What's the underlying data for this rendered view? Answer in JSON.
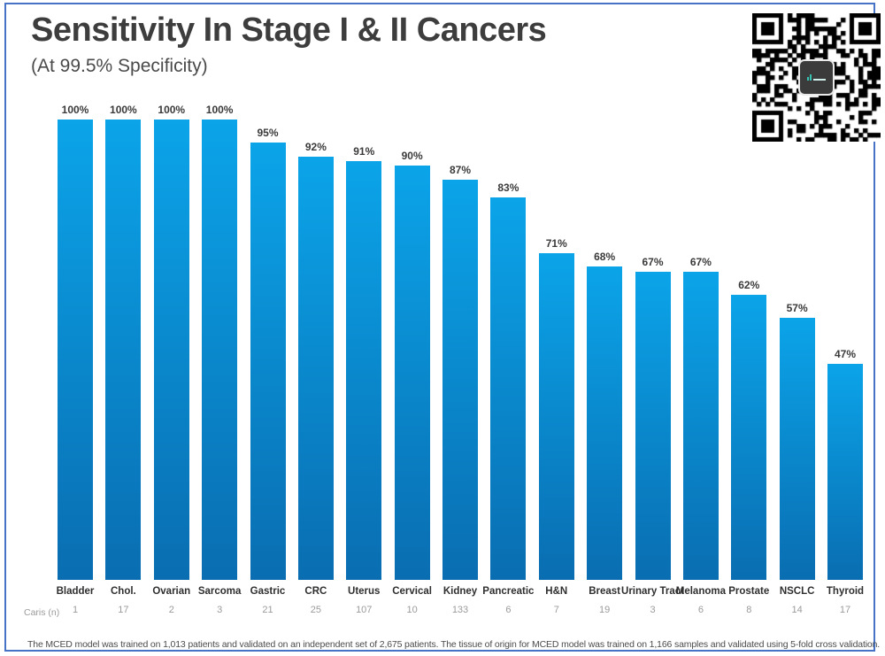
{
  "page": {
    "title": "Sensitivity In Stage I & II Cancers",
    "subtitle": "(At 99.5% Specificity)",
    "n_row_label": "Caris (n)",
    "footer": "The MCED model was trained on 1,013 patients and validated on an independent set of 2,675 patients. The tissue of origin for MCED model was trained on 1,166 samples and validated using 5-fold cross validation."
  },
  "chart_data": {
    "type": "bar",
    "title": "Sensitivity In Stage I & II Cancers",
    "subtitle": "(At 99.5% Specificity)",
    "categories": [
      "Bladder",
      "Chol.",
      "Ovarian",
      "Sarcoma",
      "Gastric",
      "CRC",
      "Uterus",
      "Cervical",
      "Kidney",
      "Pancreatic",
      "H&N",
      "Breast",
      "Urinary Tract",
      "Melanoma",
      "Prostate",
      "NSCLC",
      "Thyroid"
    ],
    "values": [
      100,
      100,
      100,
      100,
      95,
      92,
      91,
      90,
      87,
      83,
      71,
      68,
      67,
      67,
      62,
      57,
      47
    ],
    "value_labels": [
      "100%",
      "100%",
      "100%",
      "100%",
      "95%",
      "92%",
      "91%",
      "90%",
      "87%",
      "83%",
      "71%",
      "68%",
      "67%",
      "67%",
      "62%",
      "57%",
      "47%"
    ],
    "caris_n": [
      "1",
      "17",
      "2",
      "3",
      "21",
      "25",
      "107",
      "10",
      "133",
      "6",
      "7",
      "19",
      "3",
      "6",
      "8",
      "14",
      "17"
    ],
    "xlabel": "",
    "ylabel": "",
    "ylim": [
      0,
      100
    ],
    "grid": false,
    "legend": false,
    "bar_gradient_top": "#0ba4e9",
    "bar_gradient_bottom": "#0a6db1"
  },
  "colors": {
    "frame_border": "#4673c5",
    "title_text": "#3d3d3d",
    "subtitle_text": "#4a4a4a",
    "value_label_text": "#3a3a3a",
    "category_text": "#2f2f2f",
    "muted_text": "#9b9b9b",
    "footer_text": "#4c4c4c",
    "qr_module": "#000000"
  },
  "icons": {
    "qr_code": "qr-code",
    "qr_center_logo": "dark rounded square logo"
  }
}
